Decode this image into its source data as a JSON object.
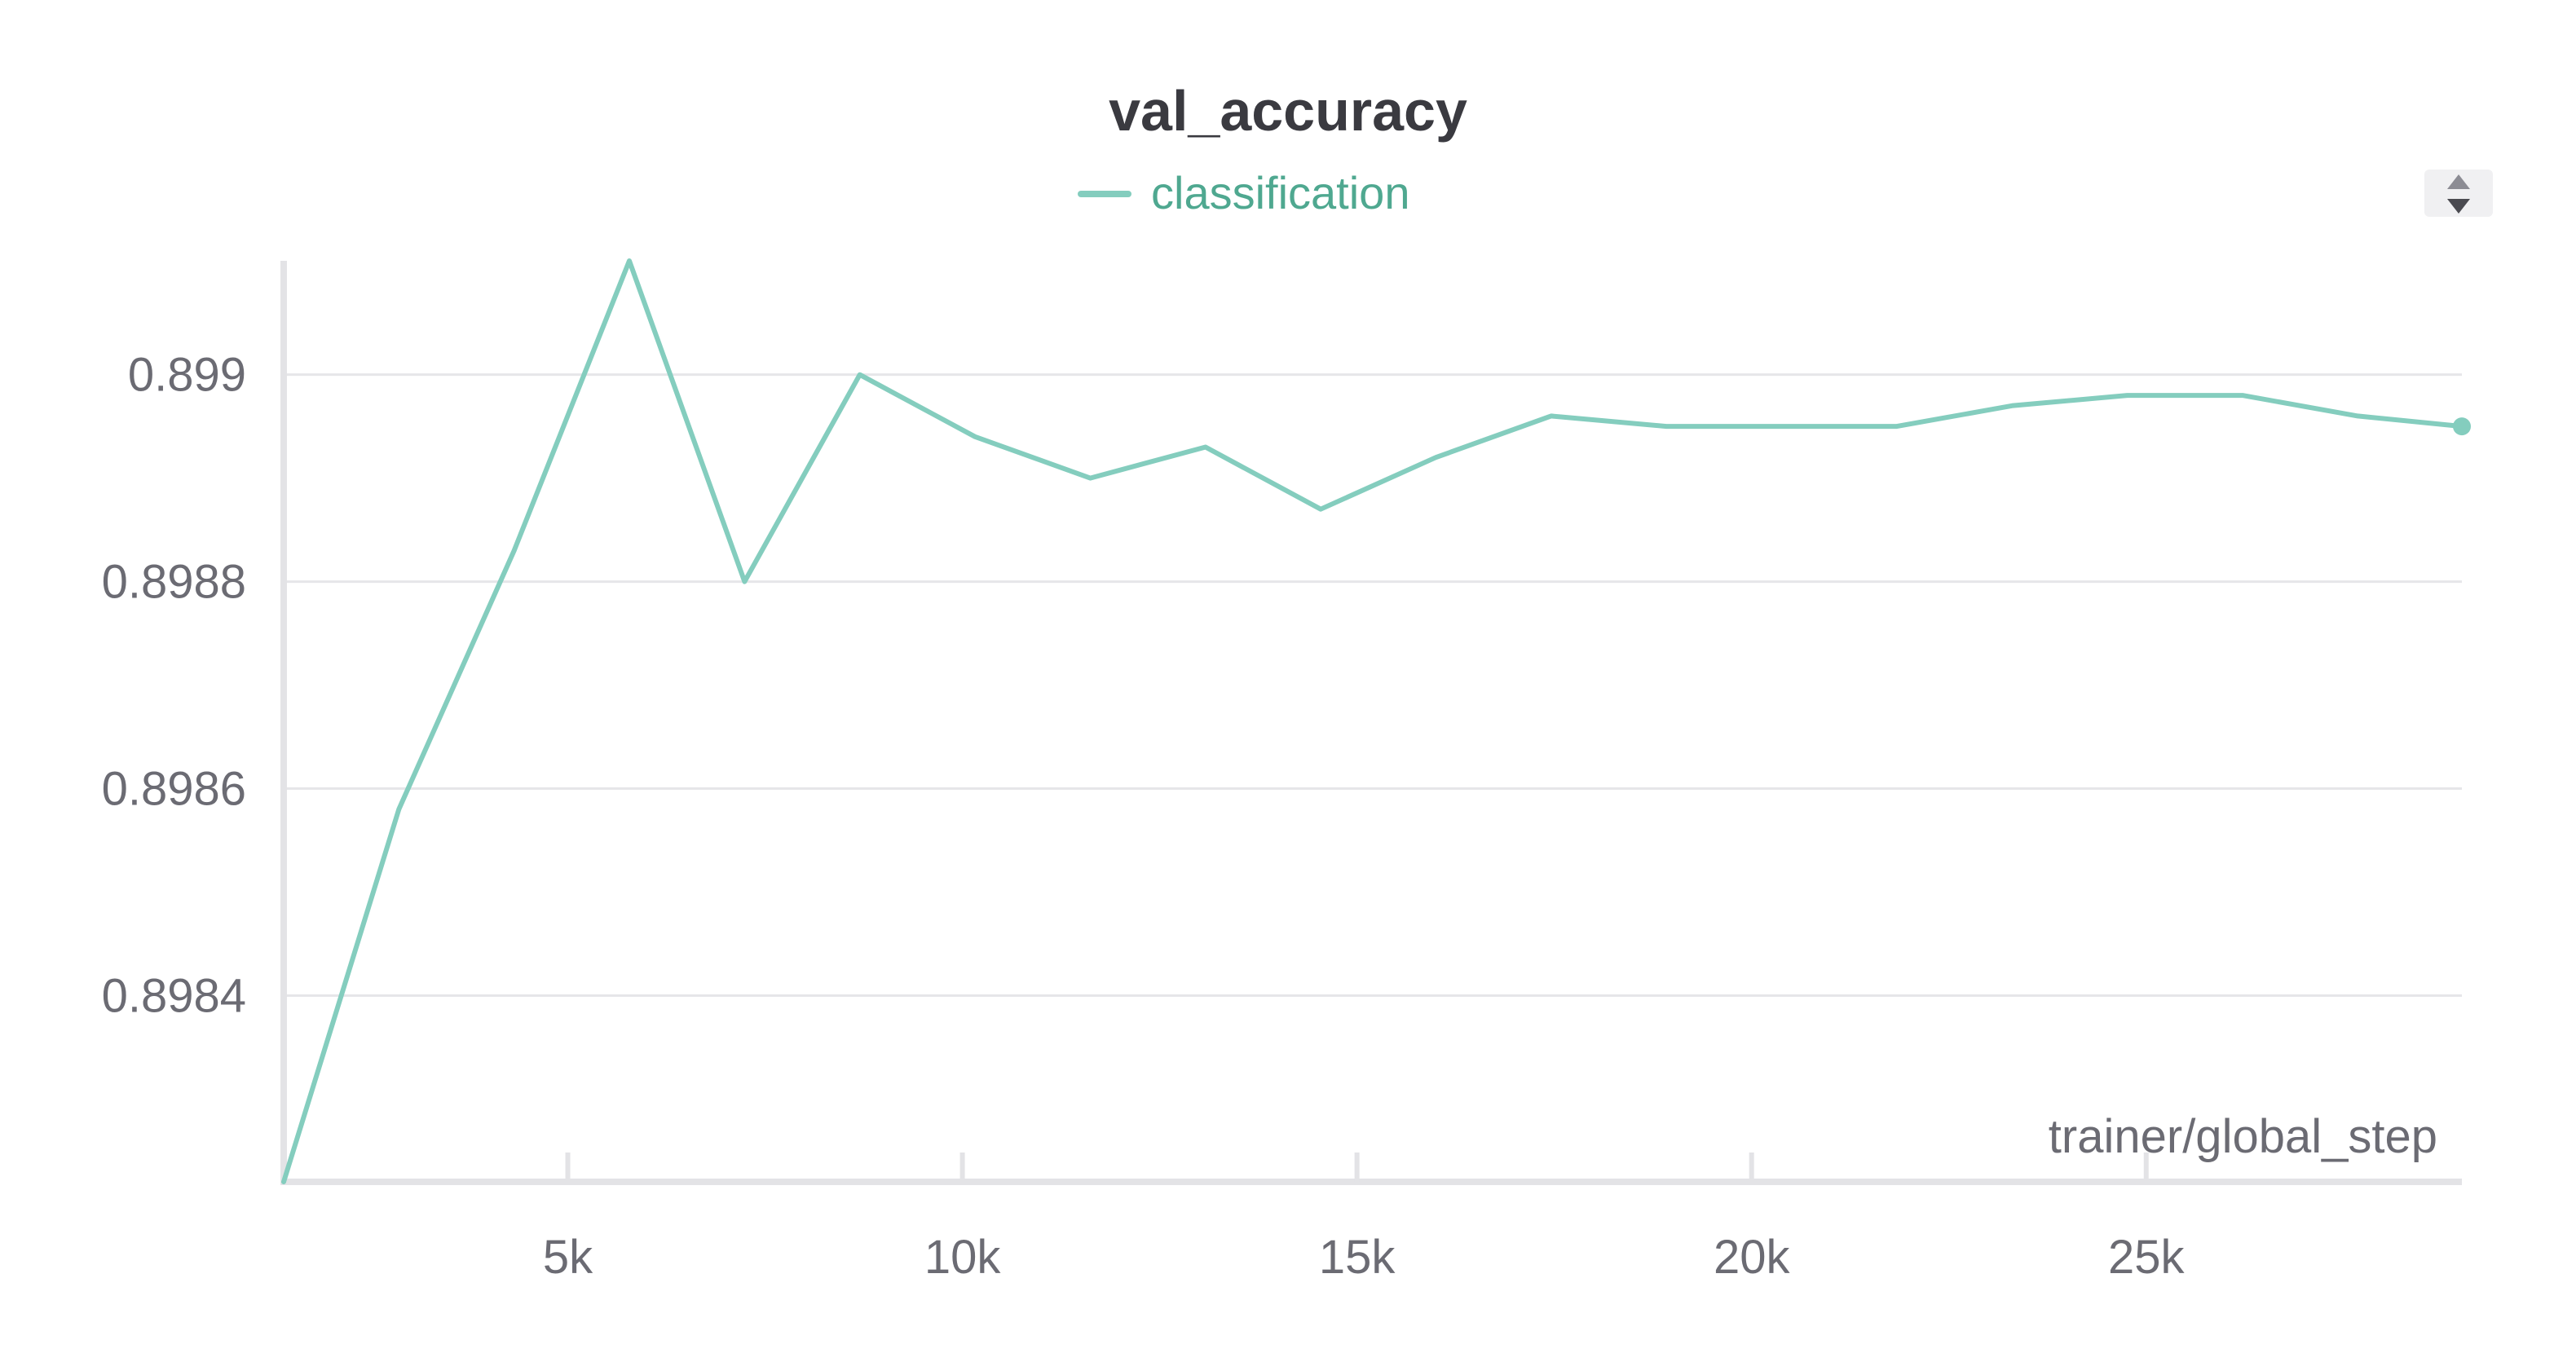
{
  "chart_data": {
    "type": "line",
    "title": "val_accuracy",
    "xlabel": "trainer/global_step",
    "ylabel": "",
    "xlim": [
      1400,
      29000
    ],
    "ylim": [
      0.89822,
      0.89911
    ],
    "x_ticks": [
      5000,
      10000,
      15000,
      20000,
      25000
    ],
    "x_tick_labels": [
      "5k",
      "10k",
      "15k",
      "20k",
      "25k"
    ],
    "y_ticks": [
      0.8984,
      0.8986,
      0.8988,
      0.899
    ],
    "y_tick_labels": [
      "0.8984",
      "0.8986",
      "0.8988",
      "0.899"
    ],
    "grid": "horizontal",
    "legend": "top-center",
    "series": [
      {
        "name": "classification",
        "color": "#84cdbe",
        "x": [
          1400,
          2860,
          4320,
          5780,
          7240,
          8700,
          10160,
          11620,
          13080,
          14540,
          16000,
          17460,
          18920,
          20380,
          21840,
          23300,
          24760,
          26220,
          27680,
          29000
        ],
        "y": [
          0.89822,
          0.89858,
          0.89883,
          0.89911,
          0.8988,
          0.899,
          0.89894,
          0.8989,
          0.89893,
          0.89887,
          0.89892,
          0.89896,
          0.89895,
          0.89895,
          0.89895,
          0.89897,
          0.89898,
          0.89898,
          0.89896,
          0.89895
        ]
      }
    ]
  },
  "icons": {
    "scroll": "sort-arrows-icon"
  }
}
